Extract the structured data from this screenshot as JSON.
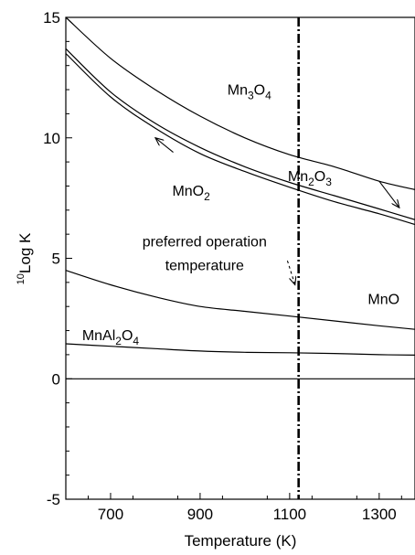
{
  "chart_data": {
    "type": "line",
    "title": "",
    "xlabel": "Temperature (K)",
    "ylabel": {
      "sup": "10",
      "text": "Log K"
    },
    "xlim": [
      600,
      1380
    ],
    "ylim": [
      -5,
      15
    ],
    "xticks": [
      700,
      900,
      1100,
      1300
    ],
    "yticks": [
      -5,
      0,
      5,
      10,
      15
    ],
    "grid": false,
    "series": [
      {
        "id": "mn3o4",
        "x": [
          600,
          700,
          800,
          900,
          1000,
          1100,
          1200,
          1300,
          1380
        ],
        "y": [
          15.0,
          13.3,
          12.0,
          10.9,
          10.0,
          9.3,
          8.8,
          8.2,
          7.85
        ]
      },
      {
        "id": "mn2o3",
        "x": [
          600,
          700,
          800,
          900,
          1000,
          1100,
          1200,
          1300,
          1380
        ],
        "y": [
          13.7,
          11.9,
          10.6,
          9.6,
          8.8,
          8.15,
          7.6,
          7.05,
          6.6
        ]
      },
      {
        "id": "mno2",
        "x": [
          600,
          700,
          800,
          900,
          1000,
          1100,
          1200,
          1300,
          1380
        ],
        "y": [
          13.5,
          11.7,
          10.4,
          9.35,
          8.6,
          7.95,
          7.35,
          6.85,
          6.4
        ]
      },
      {
        "id": "mno",
        "x": [
          600,
          700,
          800,
          900,
          1000,
          1100,
          1200,
          1300,
          1380
        ],
        "y": [
          4.5,
          3.9,
          3.4,
          3.0,
          2.8,
          2.6,
          2.4,
          2.2,
          2.05
        ]
      },
      {
        "id": "mnal2o4",
        "x": [
          600,
          700,
          800,
          900,
          1000,
          1100,
          1200,
          1300,
          1380
        ],
        "y": [
          1.45,
          1.35,
          1.25,
          1.15,
          1.1,
          1.08,
          1.05,
          1.0,
          0.98
        ]
      },
      {
        "id": "zero",
        "x": [
          600,
          1380
        ],
        "y": [
          0,
          0
        ]
      }
    ],
    "vline": {
      "x": 1120,
      "style": "dash-dot"
    },
    "annotations": [
      {
        "id": "mn3o4",
        "parts": [
          {
            "t": "Mn"
          },
          {
            "t": "3",
            "sub": true
          },
          {
            "t": "O"
          },
          {
            "t": "4",
            "sub": true
          }
        ],
        "x": 1010,
        "y": 11.8
      },
      {
        "id": "mn2o3",
        "parts": [
          {
            "t": "Mn"
          },
          {
            "t": "2",
            "sub": true
          },
          {
            "t": "O"
          },
          {
            "t": "3",
            "sub": true
          }
        ],
        "x": 1145,
        "y": 8.2
      },
      {
        "id": "mno2",
        "parts": [
          {
            "t": "MnO"
          },
          {
            "t": "2",
            "sub": true
          }
        ],
        "x": 880,
        "y": 7.6
      },
      {
        "id": "preferred-1",
        "parts": [
          {
            "t": "preferred operation"
          }
        ],
        "x": 910,
        "y": 5.5
      },
      {
        "id": "preferred-2",
        "parts": [
          {
            "t": "temperature"
          }
        ],
        "x": 910,
        "y": 4.5
      },
      {
        "id": "mno",
        "parts": [
          {
            "t": "MnO"
          }
        ],
        "x": 1310,
        "y": 3.1
      },
      {
        "id": "mnal2o4",
        "parts": [
          {
            "t": "MnAl"
          },
          {
            "t": "2",
            "sub": true
          },
          {
            "t": "O"
          },
          {
            "t": "4",
            "sub": true
          }
        ],
        "x": 700,
        "y": 1.6
      }
    ],
    "arrows": [
      {
        "id": "mno2-arrow",
        "from": [
          840,
          9.4
        ],
        "to": [
          800,
          10.0
        ]
      },
      {
        "id": "mn2o3-arrow",
        "from": [
          1300,
          8.2
        ],
        "to": [
          1345,
          7.1
        ]
      },
      {
        "id": "preferred-arrow",
        "from": [
          1095,
          4.9
        ],
        "to": [
          1112,
          3.9
        ]
      }
    ]
  }
}
